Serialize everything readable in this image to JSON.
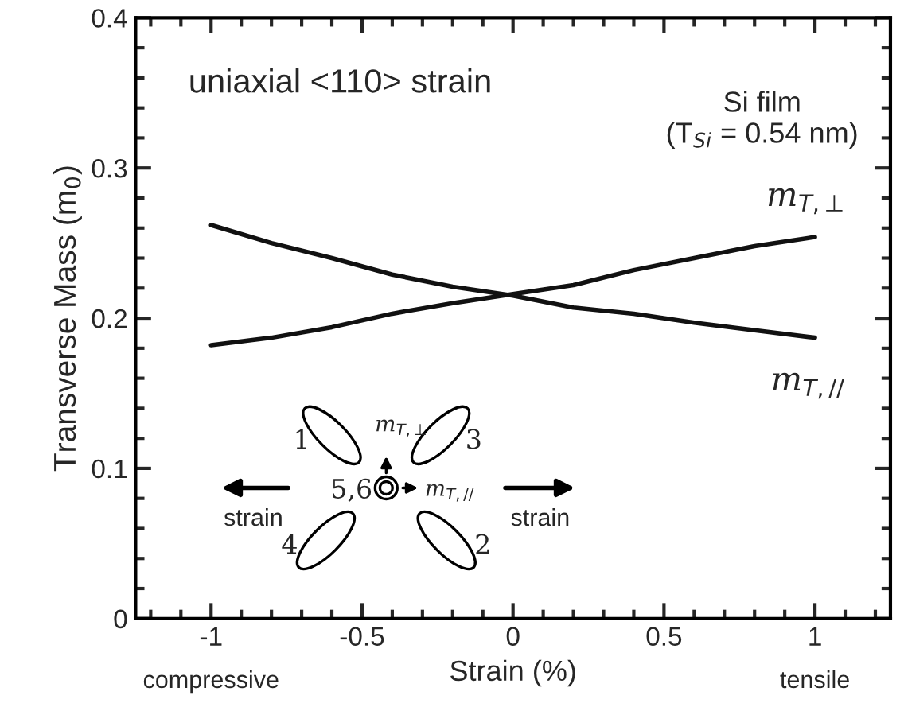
{
  "chart_data": {
    "type": "line",
    "xlabel": "Strain (%)",
    "ylabel": "Transverse Mass (m$_{0}$)",
    "x": [
      -1,
      -0.8,
      -0.6,
      -0.4,
      -0.2,
      0,
      0.2,
      0.4,
      0.6,
      0.8,
      1
    ],
    "series": [
      {
        "name": "m$_{T,⊥}$",
        "color": "#111111",
        "values": [
          0.182,
          0.187,
          0.194,
          0.203,
          0.21,
          0.216,
          0.222,
          0.232,
          0.24,
          0.248,
          0.254
        ]
      },
      {
        "name": "m$_{T,//}$",
        "color": "#111111",
        "values": [
          0.262,
          0.25,
          0.24,
          0.229,
          0.221,
          0.215,
          0.207,
          0.203,
          0.197,
          0.192,
          0.187
        ]
      }
    ],
    "xlim": [
      -1.25,
      1.25
    ],
    "ylim": [
      0,
      0.4
    ],
    "xticks": [
      -1,
      -0.5,
      0,
      0.5,
      1
    ],
    "yticks": [
      0,
      0.1,
      0.2,
      0.3,
      0.4
    ],
    "grid": false,
    "legend": false,
    "marker": "none",
    "line_style": "solid",
    "annotations": [
      "uniaxial <110> strain",
      "Si film\n(T$_{Si}$ = 0.54 nm)",
      "compressive",
      "tensile",
      "1",
      "3",
      "4",
      "2",
      "5,6",
      "m$_{T,⊥}$",
      "m$_{T,//}$",
      "strain",
      "strain"
    ]
  }
}
